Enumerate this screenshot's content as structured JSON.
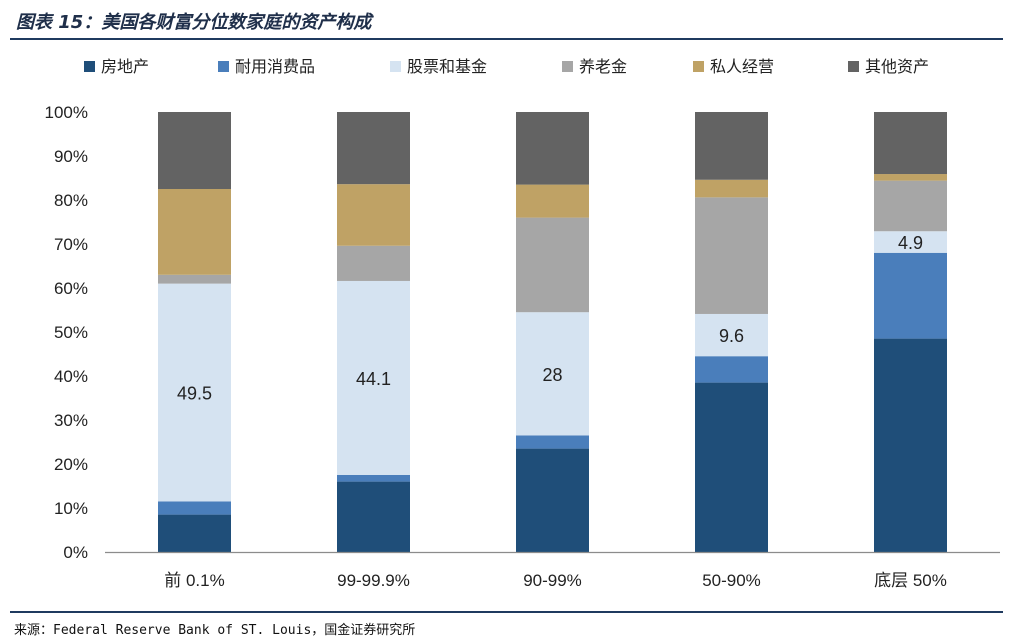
{
  "figure": {
    "title": "图表 15：美国各财富分位数家庭的资产构成",
    "source": "来源：Federal Reserve Bank of ST. Louis，国金证券研究所"
  },
  "chart_data": {
    "type": "bar",
    "stacked": true,
    "title": "",
    "xlabel": "",
    "ylabel": "",
    "ylim": [
      0,
      100
    ],
    "y_ticks": [
      "0%",
      "10%",
      "20%",
      "30%",
      "40%",
      "50%",
      "60%",
      "70%",
      "80%",
      "90%",
      "100%"
    ],
    "legend_position": "top",
    "grid": false,
    "categories": [
      "前 0.1%",
      "99-99.9%",
      "90-99%",
      "50-90%",
      "底层 50%"
    ],
    "series": [
      {
        "name": "房地产",
        "color": "#1f4e79",
        "values": [
          8.5,
          16,
          23.5,
          38.5,
          48.5
        ]
      },
      {
        "name": "耐用消费品",
        "color": "#4a7ebb",
        "values": [
          3,
          1.5,
          3,
          6,
          19.5
        ]
      },
      {
        "name": "股票和基金",
        "color": "#d5e3f1",
        "values": [
          49.5,
          44.1,
          28,
          9.6,
          4.9
        ]
      },
      {
        "name": "养老金",
        "color": "#a6a6a6",
        "values": [
          2,
          8,
          21.5,
          26.5,
          11.5
        ]
      },
      {
        "name": "私人经营",
        "color": "#bfa265",
        "values": [
          19.5,
          14,
          7.5,
          4,
          1.5
        ]
      },
      {
        "name": "其他资产",
        "color": "#636363",
        "values": [
          17.5,
          16.4,
          16.5,
          15.4,
          14.1
        ]
      }
    ],
    "data_labels": [
      {
        "series": "股票和基金",
        "values": [
          "49.5",
          "44.1",
          "28",
          "9.6",
          "4.9"
        ]
      }
    ]
  }
}
